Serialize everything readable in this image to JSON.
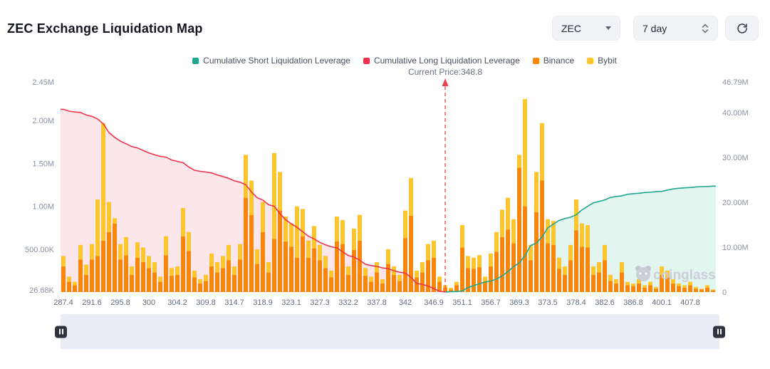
{
  "header": {
    "title": "ZEC Exchange Liquidation Map",
    "coin_select": {
      "value": "ZEC"
    },
    "timeframe_select": {
      "value": "7 day"
    }
  },
  "legend": {
    "items": [
      {
        "label": "Cumulative Short Liquidation Leverage",
        "color": "#20A68C"
      },
      {
        "label": "Cumulative Long Liquidation Leverage",
        "color": "#F0334B"
      },
      {
        "label": "Binance",
        "color": "#F8860D"
      },
      {
        "label": "Bybit",
        "color": "#FDC62F"
      }
    ]
  },
  "watermark": {
    "text": "coinglass"
  },
  "chart_data": {
    "type": "bar",
    "title": "ZEC Exchange Liquidation Map",
    "current_price_label": "Current Price:348.8",
    "current_price": 348.8,
    "current_index": 67,
    "value_unit": 1000,
    "x_tick_every": 5,
    "x_tick_labels": [
      "287.4",
      "291.6",
      "295.8",
      "300",
      "304.2",
      "309.8",
      "314.7",
      "318.9",
      "323.1",
      "327.3",
      "332.2",
      "337.8",
      "342",
      "346.9",
      "351.1",
      "356.7",
      "369.3",
      "373.5",
      "378.4",
      "382.6",
      "386.8",
      "400.1",
      "407.8"
    ],
    "left_axis_ticks": [
      {
        "label": "2.45M",
        "value": 2450000
      },
      {
        "label": "2.00M",
        "value": 2000000
      },
      {
        "label": "1.50M",
        "value": 1500000
      },
      {
        "label": "1.00M",
        "value": 1000000
      },
      {
        "label": "500.00K",
        "value": 500000
      },
      {
        "label": "26.68K",
        "value": 26680
      }
    ],
    "right_axis_ticks": [
      {
        "label": "46.79M",
        "value": 46790000
      },
      {
        "label": "40.00M",
        "value": 40000000
      },
      {
        "label": "30.00M",
        "value": 30000000
      },
      {
        "label": "20.00M",
        "value": 20000000
      },
      {
        "label": "10.00M",
        "value": 10000000
      },
      {
        "label": "0",
        "value": 0
      }
    ],
    "series": [
      {
        "name": "Binance",
        "type": "bar",
        "axis": "left",
        "color": "#F8860D",
        "values": [
          300,
          120,
          80,
          380,
          200,
          380,
          420,
          600,
          700,
          800,
          380,
          430,
          200,
          400,
          350,
          280,
          230,
          120,
          430,
          190,
          200,
          650,
          480,
          170,
          100,
          130,
          300,
          230,
          280,
          370,
          200,
          380,
          1100,
          900,
          330,
          700,
          230,
          620,
          950,
          590,
          530,
          400,
          650,
          400,
          510,
          370,
          280,
          170,
          590,
          560,
          200,
          490,
          600,
          190,
          120,
          230,
          100,
          330,
          200,
          130,
          630,
          890,
          170,
          230,
          370,
          400,
          120,
          50,
          30,
          80,
          520,
          280,
          270,
          290,
          120,
          300,
          470,
          640,
          730,
          570,
          1450,
          1000,
          370,
          930,
          1300,
          570,
          550,
          270,
          200,
          370,
          720,
          530,
          520,
          200,
          230,
          370,
          130,
          100,
          230,
          80,
          70,
          100,
          50,
          80,
          40,
          200,
          170,
          100,
          70,
          50,
          80,
          40,
          30,
          50,
          20
        ]
      },
      {
        "name": "Bybit",
        "type": "bar",
        "axis": "left",
        "color": "#FDC62F",
        "values": [
          120,
          60,
          40,
          170,
          120,
          180,
          660,
          1370,
          350,
          60,
          180,
          210,
          100,
          180,
          170,
          140,
          120,
          60,
          220,
          90,
          100,
          330,
          220,
          80,
          50,
          70,
          150,
          120,
          140,
          180,
          100,
          180,
          500,
          400,
          170,
          350,
          120,
          1000,
          450,
          290,
          270,
          600,
          320,
          200,
          260,
          180,
          140,
          80,
          290,
          280,
          100,
          250,
          300,
          90,
          60,
          120,
          50,
          170,
          100,
          70,
          320,
          440,
          80,
          120,
          190,
          200,
          60,
          30,
          20,
          40,
          260,
          140,
          130,
          140,
          60,
          150,
          230,
          320,
          370,
          280,
          150,
          1250,
          180,
          470,
          670,
          280,
          280,
          130,
          100,
          180,
          360,
          270,
          260,
          100,
          120,
          180,
          70,
          50,
          120,
          40,
          30,
          50,
          30,
          40,
          20,
          100,
          80,
          50,
          30,
          30,
          40,
          20,
          10,
          30,
          10
        ]
      },
      {
        "name": "Cumulative Long Liquidation Leverage",
        "type": "line",
        "axis": "right",
        "color": "#F0334B",
        "fill": "#FBE7EA",
        "derived": "cumulative_sum_of_bars_left_of_current_price"
      },
      {
        "name": "Cumulative Short Liquidation Leverage",
        "type": "line",
        "axis": "right",
        "color": "#20A68C",
        "fill": "#E3F5EF",
        "derived": "cumulative_sum_of_bars_right_of_current_price"
      }
    ]
  }
}
